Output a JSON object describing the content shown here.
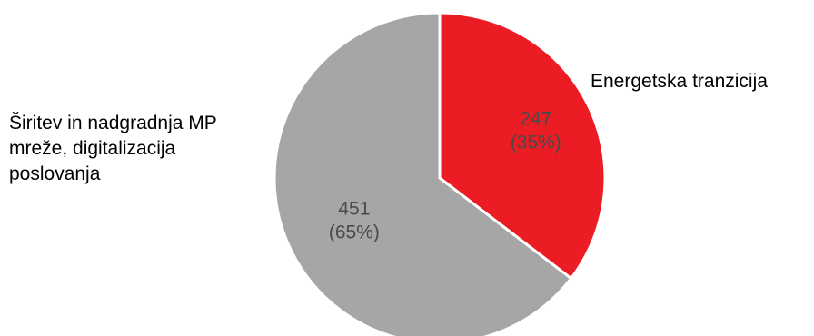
{
  "chart_data": {
    "type": "pie",
    "title": "",
    "categories": [
      "Energetska tranzicija",
      "Širitev in nadgradnja MP mreže, digitalizacija poslovanja"
    ],
    "category_lines": [
      [
        "Energetska tranzicija"
      ],
      [
        "Širitev in nadgradnja MP",
        "mreže, digitalizacija",
        "poslovanja"
      ]
    ],
    "values": [
      247,
      451
    ],
    "percent_labels": [
      "(35%)",
      "(65%)"
    ],
    "value_labels": [
      "247",
      "451"
    ],
    "colors": [
      "#ec1c24",
      "#a6a6a6"
    ],
    "start_angle_deg": 0,
    "direction": "clockwise",
    "legend": "none"
  }
}
